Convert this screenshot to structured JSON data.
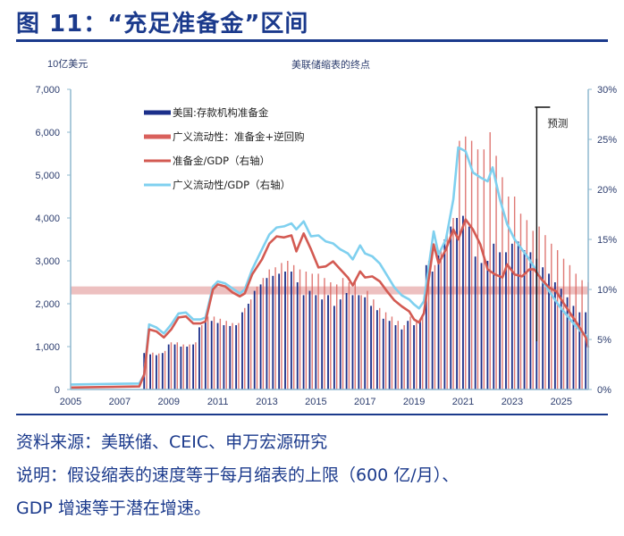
{
  "title": "图 11：“充足准备金”区间",
  "footer": {
    "source": "资料来源：美联储、CEIC、申万宏源研究",
    "note1": "说明：假设缩表的速度等于每月缩表的上限（600 亿/月）、",
    "note2": "GDP 增速等于潜在增速。"
  },
  "chart_data": {
    "type": "bar+line",
    "title": "美联储缩表的终点",
    "ylabel_left": "10亿美元",
    "ylim_left": [
      0,
      7000
    ],
    "yticks_left": [
      "0",
      "1,000",
      "2,000",
      "3,000",
      "4,000",
      "5,000",
      "6,000",
      "7,000"
    ],
    "ylim_right": [
      0,
      30
    ],
    "yticks_right": [
      "0%",
      "5%",
      "10%",
      "15%",
      "20%",
      "25%",
      "30%"
    ],
    "xlim": [
      2005,
      2026.1
    ],
    "xticks": [
      "2005",
      "2007",
      "2009",
      "2011",
      "2013",
      "2015",
      "2017",
      "2019",
      "2021",
      "2023",
      "2025"
    ],
    "legend_position": "top-left",
    "forecast_label": "预测",
    "forecast_start": 2024.0,
    "ample_reserves_band_pct": [
      9.5,
      10.3
    ],
    "colors": {
      "reserves": "#1b2f8a",
      "broad": "#d9605c",
      "reserves_gdp": "#d35a52",
      "broad_gdp": "#7fd0ef",
      "band": "#e9b0b0"
    },
    "bar_start": 2008.0,
    "bar_step": 0.25,
    "series": [
      {
        "name": "美国:存款机构准备金",
        "kind": "bar",
        "axis": "left",
        "values": [
          850,
          820,
          800,
          850,
          1050,
          1050,
          1000,
          1000,
          1050,
          1450,
          1600,
          1600,
          1550,
          1500,
          1480,
          1500,
          1800,
          2000,
          2300,
          2450,
          2600,
          2650,
          2700,
          2750,
          2750,
          2500,
          2200,
          2300,
          2200,
          2100,
          2200,
          1950,
          2100,
          2250,
          2200,
          2200,
          2150,
          1950,
          1850,
          1650,
          1600,
          1500,
          1400,
          1600,
          1500,
          1600,
          2900,
          2750,
          3150,
          3500,
          3800,
          4000,
          4050,
          3800,
          3100,
          2950,
          3000,
          3400,
          3200,
          3200,
          3400,
          3450,
          3250,
          3200,
          3050,
          2850,
          2700,
          2500,
          2350,
          2150,
          1950,
          1800,
          1800
        ]
      },
      {
        "name": "广义流动性：准备金+逆回购",
        "kind": "bar",
        "axis": "left",
        "values": [
          900,
          860,
          840,
          900,
          1100,
          1100,
          1050,
          1050,
          1100,
          1500,
          1700,
          1700,
          1650,
          1600,
          1550,
          1550,
          1900,
          2100,
          2400,
          2600,
          2800,
          2850,
          2950,
          3000,
          2900,
          2800,
          2750,
          2700,
          2700,
          2600,
          2500,
          2450,
          2600,
          2500,
          2500,
          2200,
          2300,
          2100,
          1900,
          1800,
          1700,
          1600,
          1500,
          1700,
          1600,
          1700,
          3000,
          2900,
          3300,
          3700,
          4000,
          5800,
          5900,
          5800,
          5600,
          5600,
          6000,
          5450,
          4950,
          4500,
          4500,
          4100,
          3950,
          3700,
          3800,
          3600,
          3400,
          3250,
          3050,
          2900,
          2700,
          2550,
          2500
        ]
      },
      {
        "name": "准备金/GDP（右轴）",
        "kind": "line",
        "axis": "right",
        "points": [
          [
            2005,
            0.2
          ],
          [
            2007.8,
            0.3
          ],
          [
            2008.0,
            1.5
          ],
          [
            2008.2,
            6.0
          ],
          [
            2008.5,
            5.8
          ],
          [
            2008.8,
            5.2
          ],
          [
            2009.1,
            6.0
          ],
          [
            2009.4,
            7.2
          ],
          [
            2009.7,
            7.3
          ],
          [
            2010.0,
            6.6
          ],
          [
            2010.3,
            6.6
          ],
          [
            2010.5,
            6.8
          ],
          [
            2010.8,
            10.0
          ],
          [
            2011.0,
            10.5
          ],
          [
            2011.3,
            10.3
          ],
          [
            2011.6,
            9.7
          ],
          [
            2011.9,
            9.3
          ],
          [
            2012.1,
            9.6
          ],
          [
            2012.4,
            11.5
          ],
          [
            2012.8,
            13.0
          ],
          [
            2013.1,
            14.6
          ],
          [
            2013.4,
            15.3
          ],
          [
            2013.7,
            15.2
          ],
          [
            2014.0,
            15.4
          ],
          [
            2014.2,
            13.8
          ],
          [
            2014.5,
            15.6
          ],
          [
            2014.8,
            14.0
          ],
          [
            2015.1,
            12.2
          ],
          [
            2015.4,
            12.3
          ],
          [
            2015.7,
            12.8
          ],
          [
            2016.0,
            12.0
          ],
          [
            2016.3,
            11.2
          ],
          [
            2016.5,
            10.4
          ],
          [
            2016.8,
            11.8
          ],
          [
            2017.0,
            11.2
          ],
          [
            2017.3,
            11.3
          ],
          [
            2017.6,
            10.8
          ],
          [
            2017.9,
            9.8
          ],
          [
            2018.2,
            8.9
          ],
          [
            2018.5,
            8.3
          ],
          [
            2018.8,
            7.8
          ],
          [
            2019.0,
            7.0
          ],
          [
            2019.2,
            6.7
          ],
          [
            2019.4,
            7.6
          ],
          [
            2019.8,
            14.5
          ],
          [
            2020.0,
            12.6
          ],
          [
            2020.3,
            14.0
          ],
          [
            2020.6,
            16.0
          ],
          [
            2020.8,
            15.0
          ],
          [
            2021.1,
            17.0
          ],
          [
            2021.4,
            16.0
          ],
          [
            2021.7,
            14.5
          ],
          [
            2022.0,
            12.0
          ],
          [
            2022.3,
            11.5
          ],
          [
            2022.6,
            11.2
          ],
          [
            2022.8,
            12.5
          ],
          [
            2023.1,
            11.5
          ],
          [
            2023.4,
            11.3
          ],
          [
            2023.7,
            12.0
          ],
          [
            2023.9,
            12.0
          ],
          [
            2024.2,
            11.0
          ],
          [
            2024.5,
            10.2
          ],
          [
            2024.8,
            9.8
          ],
          [
            2025.1,
            8.6
          ],
          [
            2025.4,
            7.5
          ],
          [
            2025.7,
            6.4
          ],
          [
            2026.0,
            5.2
          ],
          [
            2026.1,
            4.2
          ]
        ]
      },
      {
        "name": "广义流动性/GDP（右轴）",
        "kind": "line",
        "axis": "right",
        "points": [
          [
            2005,
            0.5
          ],
          [
            2007.8,
            0.6
          ],
          [
            2008.0,
            1.5
          ],
          [
            2008.2,
            6.5
          ],
          [
            2008.5,
            6.2
          ],
          [
            2008.8,
            5.6
          ],
          [
            2009.1,
            6.5
          ],
          [
            2009.4,
            7.6
          ],
          [
            2009.7,
            7.7
          ],
          [
            2010.0,
            7.0
          ],
          [
            2010.3,
            7.0
          ],
          [
            2010.5,
            7.2
          ],
          [
            2010.8,
            10.3
          ],
          [
            2011.0,
            10.8
          ],
          [
            2011.3,
            10.6
          ],
          [
            2011.6,
            10.1
          ],
          [
            2011.9,
            9.6
          ],
          [
            2012.1,
            10.0
          ],
          [
            2012.4,
            12.0
          ],
          [
            2012.8,
            14.0
          ],
          [
            2013.1,
            15.5
          ],
          [
            2013.4,
            16.2
          ],
          [
            2013.7,
            16.3
          ],
          [
            2014.0,
            16.6
          ],
          [
            2014.2,
            16.0
          ],
          [
            2014.5,
            16.8
          ],
          [
            2014.8,
            15.3
          ],
          [
            2015.1,
            15.4
          ],
          [
            2015.4,
            14.8
          ],
          [
            2015.7,
            14.6
          ],
          [
            2016.0,
            14.0
          ],
          [
            2016.3,
            13.6
          ],
          [
            2016.5,
            13.0
          ],
          [
            2016.8,
            14.4
          ],
          [
            2017.0,
            13.6
          ],
          [
            2017.3,
            13.3
          ],
          [
            2017.6,
            12.6
          ],
          [
            2017.9,
            11.4
          ],
          [
            2018.2,
            10.2
          ],
          [
            2018.5,
            9.4
          ],
          [
            2018.8,
            9.0
          ],
          [
            2019.0,
            8.5
          ],
          [
            2019.2,
            8.1
          ],
          [
            2019.4,
            8.8
          ],
          [
            2019.8,
            15.8
          ],
          [
            2020.0,
            13.5
          ],
          [
            2020.3,
            15.0
          ],
          [
            2020.6,
            19.0
          ],
          [
            2020.8,
            24.2
          ],
          [
            2021.1,
            23.8
          ],
          [
            2021.4,
            21.7
          ],
          [
            2021.7,
            21.2
          ],
          [
            2022.0,
            20.8
          ],
          [
            2022.2,
            22.2
          ],
          [
            2022.5,
            19.0
          ],
          [
            2022.8,
            16.5
          ],
          [
            2023.1,
            15.0
          ],
          [
            2023.4,
            14.0
          ],
          [
            2023.7,
            13.0
          ],
          [
            2024.0,
            11.8
          ],
          [
            2024.3,
            10.6
          ],
          [
            2024.6,
            9.5
          ],
          [
            2024.9,
            8.4
          ],
          [
            2025.2,
            7.5
          ],
          [
            2025.5,
            6.6
          ],
          [
            2025.8,
            5.8
          ],
          [
            2026.1,
            5.2
          ]
        ]
      }
    ]
  }
}
